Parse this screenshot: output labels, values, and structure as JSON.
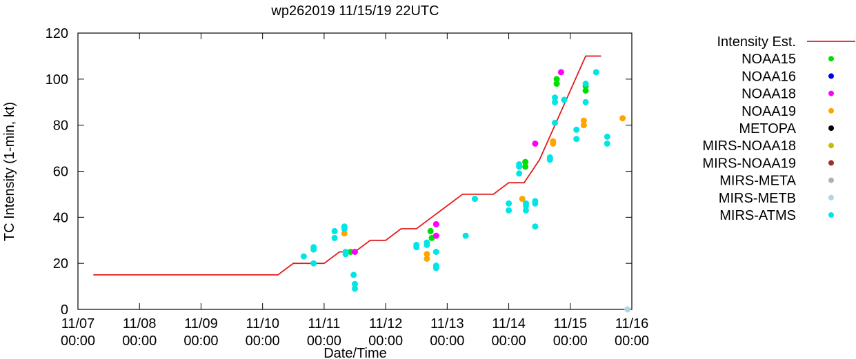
{
  "chart_data": {
    "type": "scatter",
    "title": "wp262019 11/15/19 22UTC",
    "xlabel": "Date/Time",
    "ylabel": "TC Intensity (1-min, kt)",
    "ylim": [
      0,
      120
    ],
    "xlim_days": [
      0,
      9
    ],
    "x_unit": "days since 11/07 00:00",
    "yticks": [
      0,
      20,
      40,
      60,
      80,
      100,
      120
    ],
    "xticks": [
      {
        "day": 0,
        "line1": "11/07",
        "line2": "00:00"
      },
      {
        "day": 1,
        "line1": "11/08",
        "line2": "00:00"
      },
      {
        "day": 2,
        "line1": "11/09",
        "line2": "00:00"
      },
      {
        "day": 3,
        "line1": "11/10",
        "line2": "00:00"
      },
      {
        "day": 4,
        "line1": "11/11",
        "line2": "00:00"
      },
      {
        "day": 5,
        "line1": "11/12",
        "line2": "00:00"
      },
      {
        "day": 6,
        "line1": "11/13",
        "line2": "00:00"
      },
      {
        "day": 7,
        "line1": "11/14",
        "line2": "00:00"
      },
      {
        "day": 8,
        "line1": "11/15",
        "line2": "00:00"
      },
      {
        "day": 9,
        "line1": "11/16",
        "line2": "00:00"
      }
    ],
    "grid": false,
    "legend_position": "right",
    "line_series": {
      "name": "Intensity Est.",
      "color": "#e41a1c",
      "points": [
        [
          0.25,
          15
        ],
        [
          3.25,
          15
        ],
        [
          3.5,
          20
        ],
        [
          4.0,
          20
        ],
        [
          4.25,
          25
        ],
        [
          4.5,
          25
        ],
        [
          4.75,
          30
        ],
        [
          5.0,
          30
        ],
        [
          5.25,
          35
        ],
        [
          5.5,
          35
        ],
        [
          5.75,
          40
        ],
        [
          6.0,
          45
        ],
        [
          6.25,
          50
        ],
        [
          6.75,
          50
        ],
        [
          7.0,
          55
        ],
        [
          7.25,
          55
        ],
        [
          7.5,
          65
        ],
        [
          7.75,
          80
        ],
        [
          8.0,
          95
        ],
        [
          8.25,
          110
        ],
        [
          8.5,
          110
        ]
      ]
    },
    "series": [
      {
        "name": "NOAA15",
        "color": "#00e000",
        "points": [
          [
            4.43,
            25
          ],
          [
            5.73,
            34
          ],
          [
            5.75,
            31
          ],
          [
            7.27,
            64
          ],
          [
            7.27,
            62
          ],
          [
            7.78,
            100
          ],
          [
            7.78,
            98
          ],
          [
            8.25,
            97
          ],
          [
            8.25,
            95
          ]
        ]
      },
      {
        "name": "NOAA16",
        "color": "#0000e0",
        "points": []
      },
      {
        "name": "NOAA18",
        "color": "#ff00ff",
        "points": [
          [
            4.5,
            25
          ],
          [
            5.82,
            37
          ],
          [
            5.82,
            32
          ],
          [
            7.43,
            72
          ],
          [
            7.85,
            103
          ]
        ]
      },
      {
        "name": "NOAA19",
        "color": "#ffa500",
        "points": [
          [
            4.33,
            33
          ],
          [
            5.67,
            24
          ],
          [
            5.67,
            22
          ],
          [
            7.22,
            48
          ],
          [
            7.72,
            73
          ],
          [
            7.72,
            72
          ],
          [
            8.22,
            82
          ],
          [
            8.22,
            80
          ],
          [
            8.85,
            83
          ]
        ]
      },
      {
        "name": "METOPA",
        "color": "#000000",
        "points": []
      },
      {
        "name": "MIRS-NOAA18",
        "color": "#c0c000",
        "points": []
      },
      {
        "name": "MIRS-NOAA19",
        "color": "#a52a2a",
        "points": []
      },
      {
        "name": "MIRS-META",
        "color": "#b0b0b0",
        "points": []
      },
      {
        "name": "MIRS-METB",
        "color": "#add8e6",
        "points": [
          [
            8.93,
            0
          ]
        ]
      },
      {
        "name": "MIRS-ATMS",
        "color": "#00e5e5",
        "points": [
          [
            3.67,
            23
          ],
          [
            3.83,
            27
          ],
          [
            3.83,
            26
          ],
          [
            3.83,
            20
          ],
          [
            4.17,
            34
          ],
          [
            4.17,
            31
          ],
          [
            4.35,
            25
          ],
          [
            4.35,
            24
          ],
          [
            4.33,
            36
          ],
          [
            4.33,
            35
          ],
          [
            4.48,
            15
          ],
          [
            4.5,
            11
          ],
          [
            4.5,
            9
          ],
          [
            5.5,
            28
          ],
          [
            5.5,
            27
          ],
          [
            5.67,
            29
          ],
          [
            5.67,
            28
          ],
          [
            5.82,
            25
          ],
          [
            5.82,
            19
          ],
          [
            5.82,
            18
          ],
          [
            6.3,
            32
          ],
          [
            6.45,
            48
          ],
          [
            7.0,
            46
          ],
          [
            7.0,
            43
          ],
          [
            7.17,
            63
          ],
          [
            7.17,
            62
          ],
          [
            7.17,
            59
          ],
          [
            7.28,
            46
          ],
          [
            7.28,
            45
          ],
          [
            7.28,
            43
          ],
          [
            7.43,
            47
          ],
          [
            7.43,
            46
          ],
          [
            7.43,
            36
          ],
          [
            7.67,
            66
          ],
          [
            7.67,
            65
          ],
          [
            7.75,
            92
          ],
          [
            7.75,
            90
          ],
          [
            7.75,
            81
          ],
          [
            7.9,
            91
          ],
          [
            8.1,
            78
          ],
          [
            8.1,
            74
          ],
          [
            8.25,
            98
          ],
          [
            8.25,
            90
          ],
          [
            8.42,
            103
          ],
          [
            8.6,
            75
          ],
          [
            8.6,
            72
          ]
        ]
      }
    ]
  }
}
